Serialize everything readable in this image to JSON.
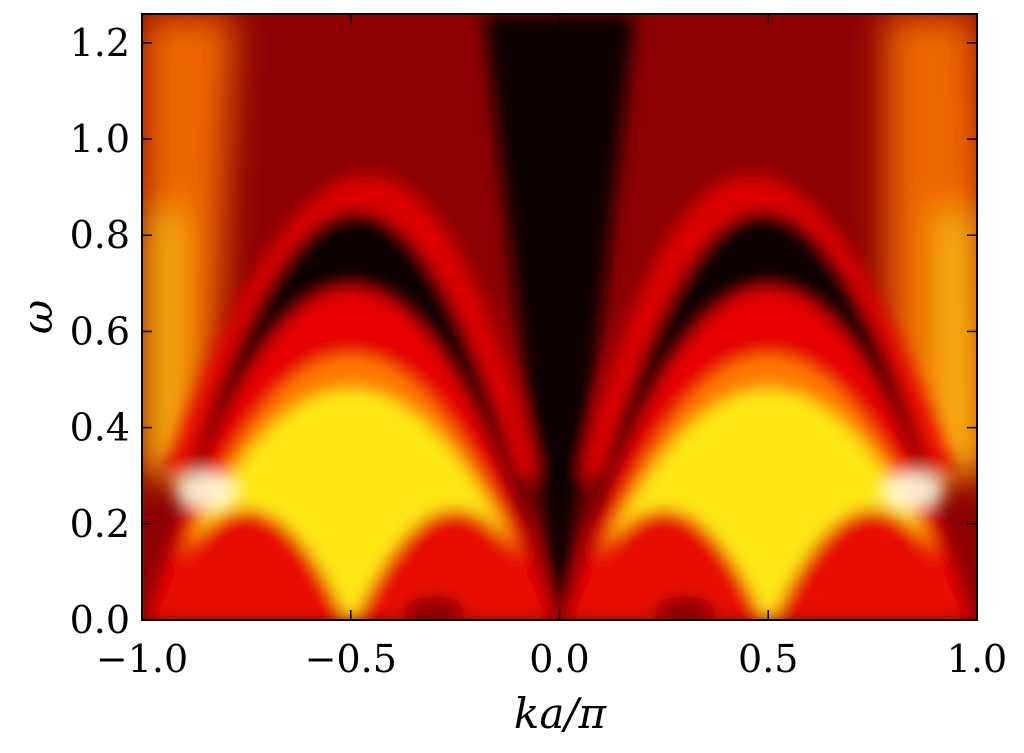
{
  "chart_data": {
    "type": "heatmap",
    "title": "",
    "xlabel": "ka/π",
    "ylabel": "ω",
    "xlim": [
      -1.0,
      1.0
    ],
    "ylim": [
      0.0,
      1.26
    ],
    "x_ticks": [
      -1.0,
      -0.5,
      0.0,
      0.5,
      1.0
    ],
    "x_tick_labels": [
      "−1.0",
      "−0.5",
      "0.0",
      "0.5",
      "1.0"
    ],
    "y_ticks": [
      0.0,
      0.2,
      0.4,
      0.6,
      0.8,
      1.0,
      1.2
    ],
    "y_tick_labels": [
      "0.0",
      "0.2",
      "0.4",
      "0.6",
      "0.8",
      "1.0",
      "1.2"
    ],
    "colormap": "hot",
    "colorbar": false,
    "grid": false,
    "features": {
      "lower_dome_peak": [
        [
          -0.5,
          0.48
        ],
        [
          0.5,
          0.48
        ]
      ],
      "upper_branch_peak": [
        [
          -0.42,
          1.0
        ],
        [
          0.42,
          1.0
        ]
      ],
      "small_arches_peak": [
        [
          -0.75,
          0.23
        ],
        [
          -0.25,
          0.23
        ],
        [
          0.25,
          0.23
        ],
        [
          0.75,
          0.23
        ]
      ]
    },
    "colors": {
      "black": "#0a0000",
      "dark_red": "#8c0000",
      "red": "#e60000",
      "orange": "#ff7a00",
      "yellow": "#ffe818",
      "white": "#ffffe0"
    }
  }
}
